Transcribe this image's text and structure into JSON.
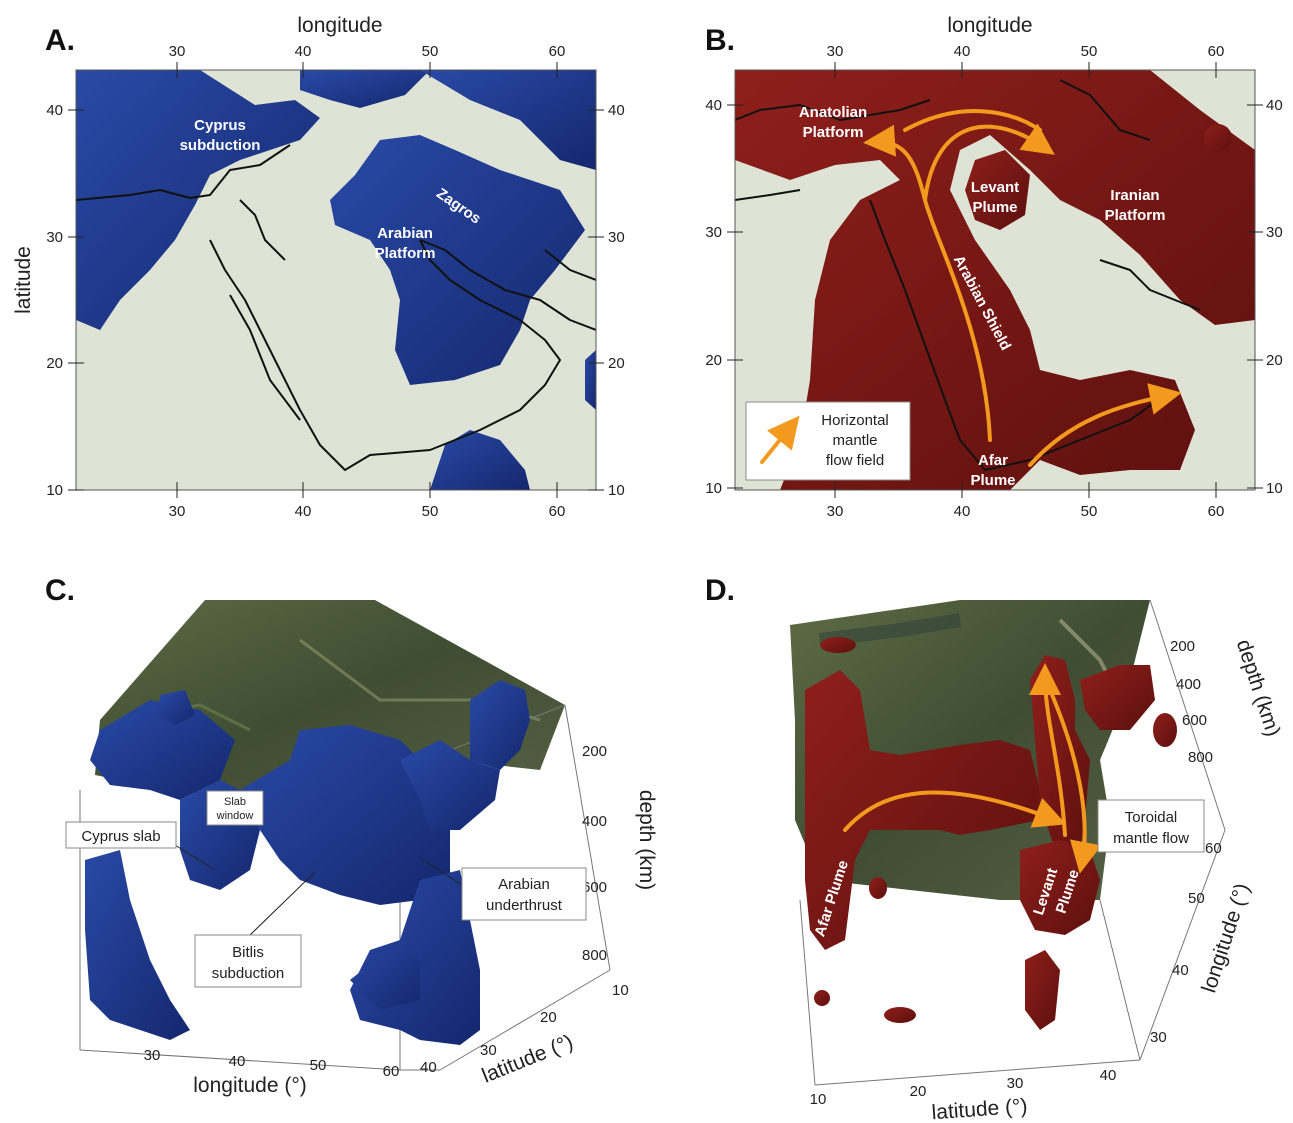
{
  "panels": {
    "A": {
      "label": "A.",
      "x_title": "longitude",
      "y_title": "latitude",
      "x_ticks": [
        "30",
        "40",
        "50",
        "60"
      ],
      "y_ticks": [
        "40",
        "30",
        "20",
        "10"
      ],
      "annotations": {
        "cyprus_1": "Cyprus",
        "cyprus_2": "subduction",
        "zagros": "Zagros",
        "arabian_1": "Arabian",
        "arabian_2": "Platform"
      }
    },
    "B": {
      "label": "B.",
      "x_title": "longitude",
      "x_ticks": [
        "30",
        "40",
        "50",
        "60"
      ],
      "y_ticks": [
        "40",
        "30",
        "20",
        "10"
      ],
      "annotations": {
        "anatolian_1": "Anatolian",
        "anatolian_2": "Platform",
        "levant_1": "Levant",
        "levant_2": "Plume",
        "iranian_1": "Iranian",
        "iranian_2": "Platform",
        "arabian_shield": "Arabian Shield",
        "afar_1": "Afar",
        "afar_2": "Plume"
      },
      "legend": {
        "line1": "Horizontal",
        "line2": "mantle",
        "line3": "flow field"
      }
    },
    "C": {
      "label": "C.",
      "x_title": "longitude (°)",
      "y_title": "latitude (°)",
      "z_title": "depth (km)",
      "x_ticks": [
        "30",
        "40",
        "50",
        "60"
      ],
      "y_ticks": [
        "10",
        "20",
        "30",
        "40"
      ],
      "z_ticks": [
        "200",
        "400",
        "600",
        "800"
      ],
      "callouts": {
        "cyprus_slab": "Cyprus slab",
        "slab_window_1": "Slab",
        "slab_window_2": "window",
        "bitlis_1": "Bitlis",
        "bitlis_2": "subduction",
        "arabian_1": "Arabian",
        "arabian_2": "underthrust"
      }
    },
    "D": {
      "label": "D.",
      "x_title": "latitude (°)",
      "y_title": "longitude (°)",
      "z_title": "depth (km)",
      "x_ticks": [
        "10",
        "20",
        "30",
        "40"
      ],
      "y_ticks": [
        "60",
        "50",
        "40",
        "30"
      ],
      "z_ticks": [
        "200",
        "400",
        "600",
        "800"
      ],
      "annotations": {
        "afar": "Afar Plume",
        "levant_1": "Levant",
        "levant_2": "Plume"
      },
      "callout": {
        "line1": "Toroidal",
        "line2": "mantle flow"
      }
    }
  },
  "colors": {
    "map_background": "#dfe3d6",
    "slab_blue": "#1f3b8f",
    "plume_red": "#7a1714",
    "flow_arrow": "#f39a1e",
    "terrain_green": "#4a5a3a"
  }
}
